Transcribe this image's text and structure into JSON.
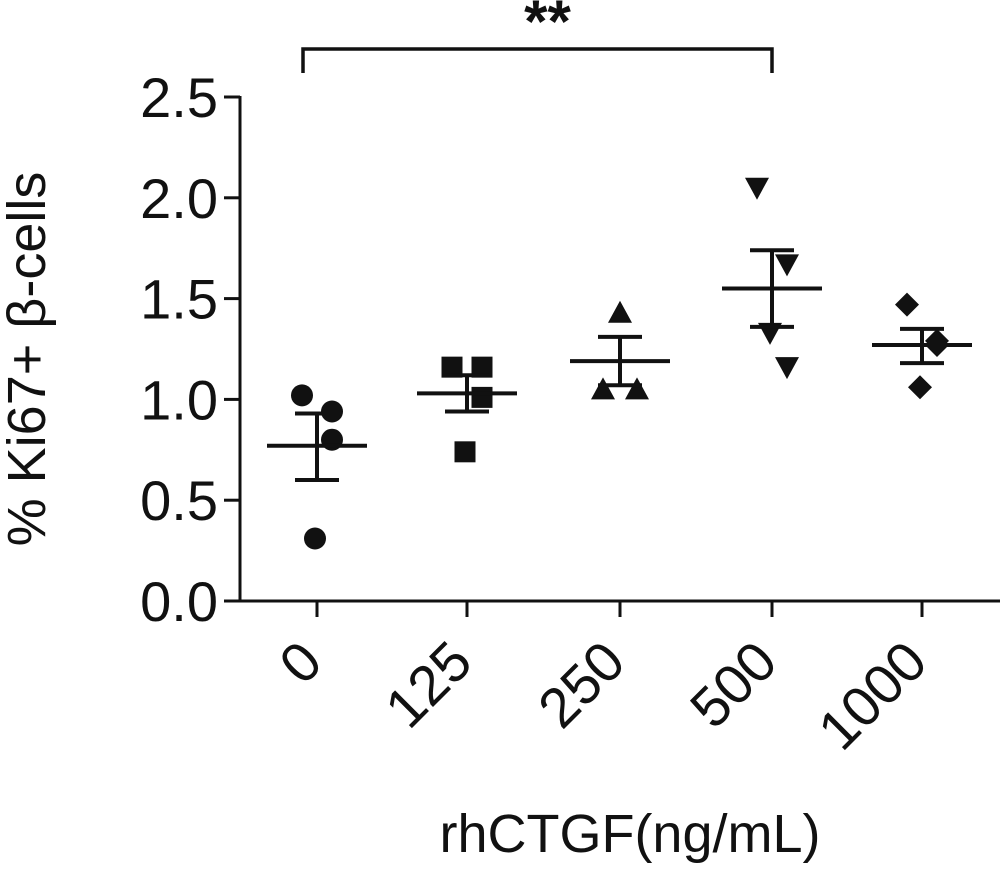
{
  "chart_data": {
    "type": "scatter",
    "xlabel": "rhCTGF(ng/mL)",
    "ylabel": "% Ki67+ β-cells",
    "ylim": [
      0,
      2.5
    ],
    "yticks": [
      "0.0",
      "0.5",
      "1.0",
      "1.5",
      "2.0",
      "2.5"
    ],
    "categories": [
      "0",
      "125",
      "250",
      "500",
      "1000"
    ],
    "groups": [
      {
        "category": "0",
        "marker": "circle",
        "points": [
          1.02,
          0.94,
          0.8,
          0.31
        ],
        "mean": 0.77,
        "sem_low": 0.6,
        "sem_high": 0.93
      },
      {
        "category": "125",
        "marker": "square",
        "points": [
          1.16,
          1.16,
          1.01,
          0.74
        ],
        "mean": 1.03,
        "sem_low": 0.94,
        "sem_high": 1.12
      },
      {
        "category": "250",
        "marker": "triangle-up",
        "points": [
          1.43,
          1.05,
          1.05
        ],
        "mean": 1.19,
        "sem_low": 1.07,
        "sem_high": 1.31
      },
      {
        "category": "500",
        "marker": "triangle-down",
        "points": [
          2.05,
          1.67,
          1.16,
          1.33
        ],
        "mean": 1.55,
        "sem_low": 1.36,
        "sem_high": 1.74
      },
      {
        "category": "1000",
        "marker": "diamond",
        "points": [
          1.47,
          1.29,
          1.27,
          1.06
        ],
        "mean": 1.27,
        "sem_low": 1.18,
        "sem_high": 1.35
      }
    ],
    "significance": {
      "from": "0",
      "to": "500",
      "label": "**"
    },
    "grid": false,
    "legend": "none",
    "color": "#111111"
  }
}
